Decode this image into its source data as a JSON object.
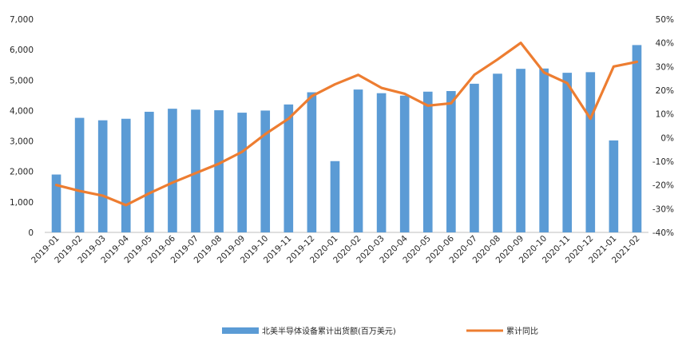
{
  "chart_data": {
    "type": "bar",
    "categories": [
      "2019-01",
      "2019-02",
      "2019-03",
      "2019-04",
      "2019-05",
      "2019-06",
      "2019-07",
      "2019-08",
      "2019-09",
      "2019-10",
      "2019-11",
      "2019-12",
      "2020-01",
      "2020-02",
      "2020-03",
      "2020-04",
      "2020-05",
      "2020-06",
      "2020-07",
      "2020-08",
      "2020-09",
      "2020-10",
      "2020-11",
      "2020-12",
      "2021-01",
      "2021-02"
    ],
    "series": [
      {
        "name": "北美半导体设备累计出货额(百万美元)",
        "type": "bar",
        "axis": "left",
        "color": "#5B9BD5",
        "values": [
          1900,
          3760,
          3680,
          3730,
          3960,
          4060,
          4030,
          4010,
          3930,
          4000,
          4200,
          4600,
          2340,
          4690,
          4570,
          4490,
          4620,
          4640,
          4880,
          5210,
          5370,
          5380,
          5240,
          5260,
          3020,
          6150
        ]
      },
      {
        "name": "累计同比",
        "type": "line",
        "axis": "right",
        "color": "#ED7D31",
        "values": [
          -20,
          -22.5,
          -24.5,
          -28.5,
          -23.5,
          -19,
          -15,
          -11,
          -6,
          1.5,
          8,
          17.5,
          22.5,
          26.5,
          21,
          18.5,
          13.5,
          14.5,
          26.5,
          33,
          40,
          27.5,
          23,
          8,
          30,
          32
        ]
      }
    ],
    "y_left": {
      "ylim": [
        0,
        7000
      ],
      "ticks": [
        0,
        1000,
        2000,
        3000,
        4000,
        5000,
        6000,
        7000
      ],
      "tick_labels": [
        "0",
        "1,000",
        "2,000",
        "3,000",
        "4,000",
        "5,000",
        "6,000",
        "7,000"
      ]
    },
    "y_right": {
      "ylim": [
        -40,
        50
      ],
      "ticks": [
        -40,
        -30,
        -20,
        -10,
        0,
        10,
        20,
        30,
        40,
        50
      ],
      "tick_labels": [
        "-40%",
        "-30%",
        "-20%",
        "-10%",
        "0%",
        "10%",
        "20%",
        "30%",
        "40%",
        "50%"
      ]
    },
    "grid": false,
    "legend_position": "bottom",
    "title": "",
    "xlabel": "",
    "ylabel": ""
  }
}
